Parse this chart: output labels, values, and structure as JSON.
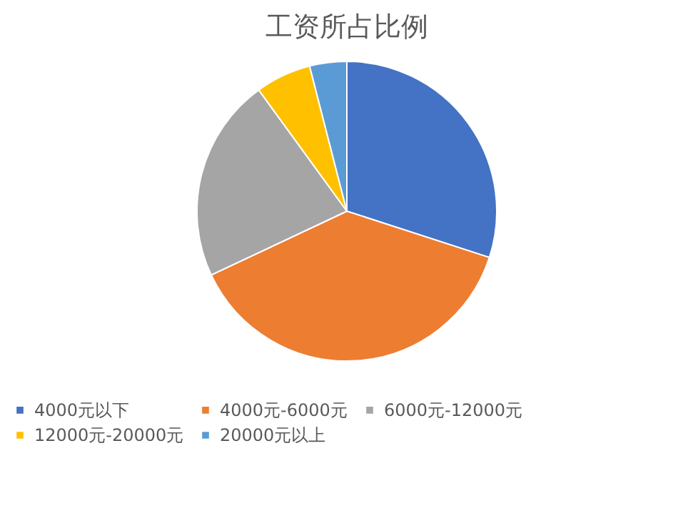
{
  "chart_data": {
    "type": "pie",
    "title": "工资所占比例",
    "categories": [
      "4000元以下",
      "4000元-6000元",
      "6000元-12000元",
      "12000元-20000元",
      "20000元以上"
    ],
    "values": [
      30,
      38,
      22,
      6,
      4
    ],
    "colors": [
      "#4472c4",
      "#ed7d31",
      "#a5a5a5",
      "#ffc000",
      "#5b9bd5"
    ],
    "legend": "bottom"
  }
}
